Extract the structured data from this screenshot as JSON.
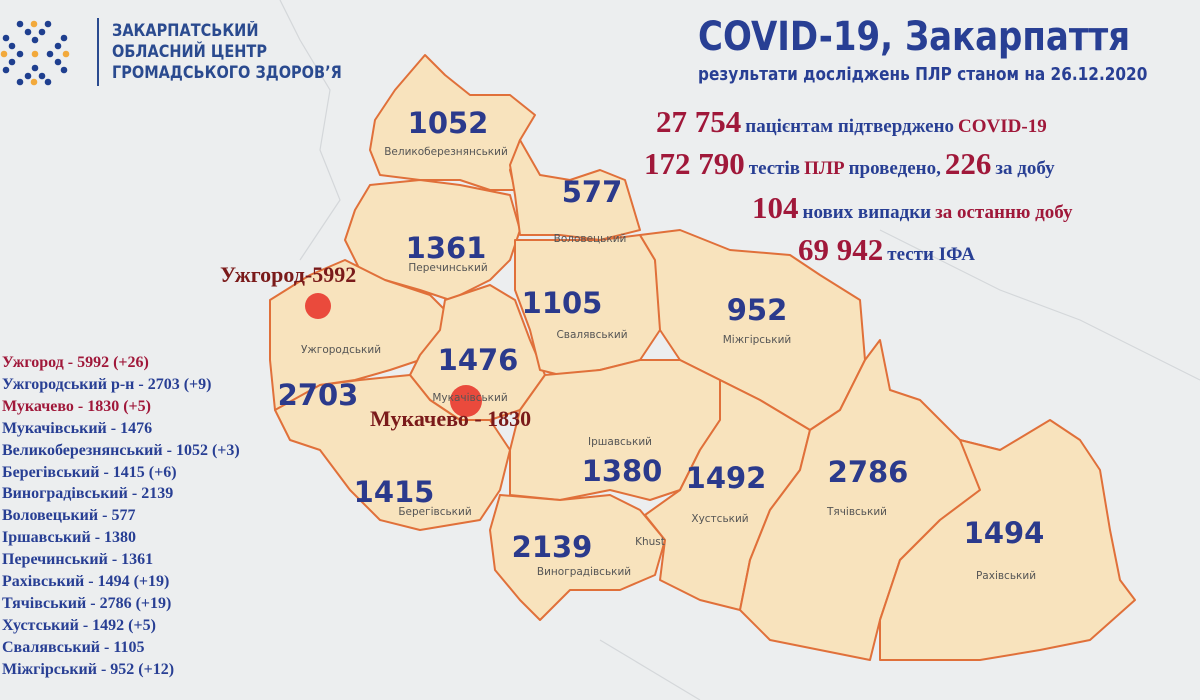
{
  "org": {
    "lines": [
      "ЗАКАРПАТСЬКИЙ",
      "ОБЛАСНИЙ ЦЕНТР",
      "ГРОМАДСЬКОГО ЗДОРОВ’Я"
    ]
  },
  "header": {
    "title": "COVID-19, Закарпаття",
    "subtitle": "результати досліджень ПЛР станом на 26.12.2020"
  },
  "stats": {
    "confirmed": {
      "value": "27 754",
      "text": "пацієнтам підтверджено",
      "suffix": "COVID-19"
    },
    "tests": {
      "value": "172 790",
      "text1": "тестів",
      "pcr": "ПЛР",
      "text2": "проведено,",
      "daily": "226",
      "text3": "за добу"
    },
    "new_cases": {
      "value": "104",
      "text": "нових випадки",
      "suffix": "за останню добу"
    },
    "ifa": {
      "value": "69 942",
      "text": "тести ІФА"
    }
  },
  "list": [
    {
      "text": "Ужгород - 5992 (+26)",
      "highlight": true
    },
    {
      "text": "Ужгородський р-н - 2703 (+9)",
      "highlight": false
    },
    {
      "text": "Мукачево - 1830 (+5)",
      "highlight": true
    },
    {
      "text": "Мукачівський - 1476",
      "highlight": false
    },
    {
      "text": "Великоберезнянський - 1052 (+3)",
      "highlight": false
    },
    {
      "text": "Берегівський - 1415 (+6)",
      "highlight": false
    },
    {
      "text": "Виноградівський - 2139",
      "highlight": false
    },
    {
      "text": "Воловецький - 577",
      "highlight": false
    },
    {
      "text": "Іршавський - 1380",
      "highlight": false
    },
    {
      "text": "Перечинський - 1361",
      "highlight": false
    },
    {
      "text": "Рахівський - 1494 (+19)",
      "highlight": false
    },
    {
      "text": "Тячівський - 2786 (+19)",
      "highlight": false
    },
    {
      "text": "Хустський - 1492 (+5)",
      "highlight": false
    },
    {
      "text": "Свалявський - 1105",
      "highlight": false
    },
    {
      "text": "Міжгірський - 952 (+12)",
      "highlight": false
    }
  ],
  "map": {
    "districts": [
      {
        "name": "Великоберезнянський",
        "value": "1052"
      },
      {
        "name": "Перечинський",
        "value": "1361"
      },
      {
        "name": "Воловецький",
        "value": "577"
      },
      {
        "name": "Ужгородський",
        "value": "2703"
      },
      {
        "name": "Мукачівський",
        "value": "1476"
      },
      {
        "name": "Свалявський",
        "value": "1105"
      },
      {
        "name": "Міжгірський",
        "value": "952"
      },
      {
        "name": "Берегівський",
        "value": "1415"
      },
      {
        "name": "Іршавський",
        "value": "1380"
      },
      {
        "name": "Виноградівський",
        "value": "2139"
      },
      {
        "name": "Хустський",
        "value": "1492"
      },
      {
        "name": "Тячівський",
        "value": "2786"
      },
      {
        "name": "Рахівський",
        "value": "1494"
      }
    ],
    "khust_label": "Khust",
    "cities": [
      {
        "label": "Ужгород-5992"
      },
      {
        "label": "Мукачево - 1830"
      }
    ],
    "colors": {
      "fill": "#f8e3bd",
      "border": "#e0703a",
      "hotspot": "#e8382e",
      "number": "#2b3a8c"
    }
  }
}
